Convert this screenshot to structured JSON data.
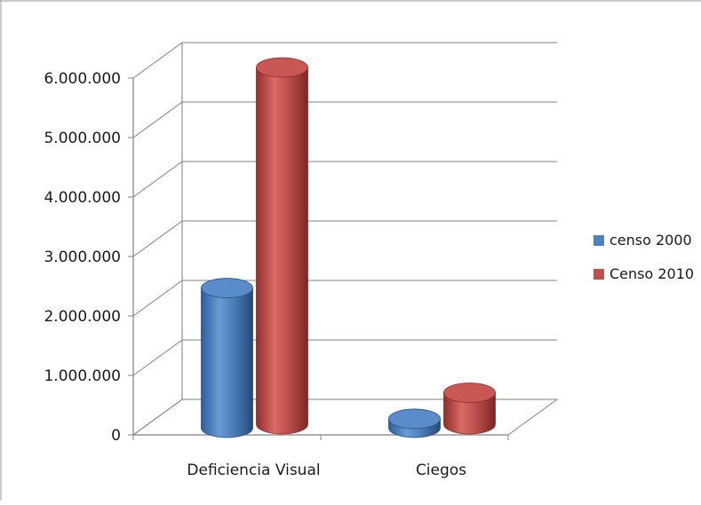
{
  "chart_data": {
    "type": "bar",
    "categories": [
      "Deficiencia Visual",
      "Ciegos"
    ],
    "series": [
      {
        "name": "censo 2000",
        "color": "#4f81bd",
        "values": [
          2350000,
          150000
        ]
      },
      {
        "name": "Censo 2010",
        "color": "#c0504d",
        "values": [
          6000000,
          530000
        ]
      }
    ],
    "yticks": [
      "0",
      "1.000.000",
      "2.000.000",
      "3.000.000",
      "4.000.000",
      "5.000.000",
      "6.000.000"
    ],
    "ylim": [
      0,
      6000000
    ],
    "title": "",
    "xlabel": "",
    "ylabel": "",
    "grid": true,
    "legend_position": "right",
    "style": "3d-cylinder"
  }
}
